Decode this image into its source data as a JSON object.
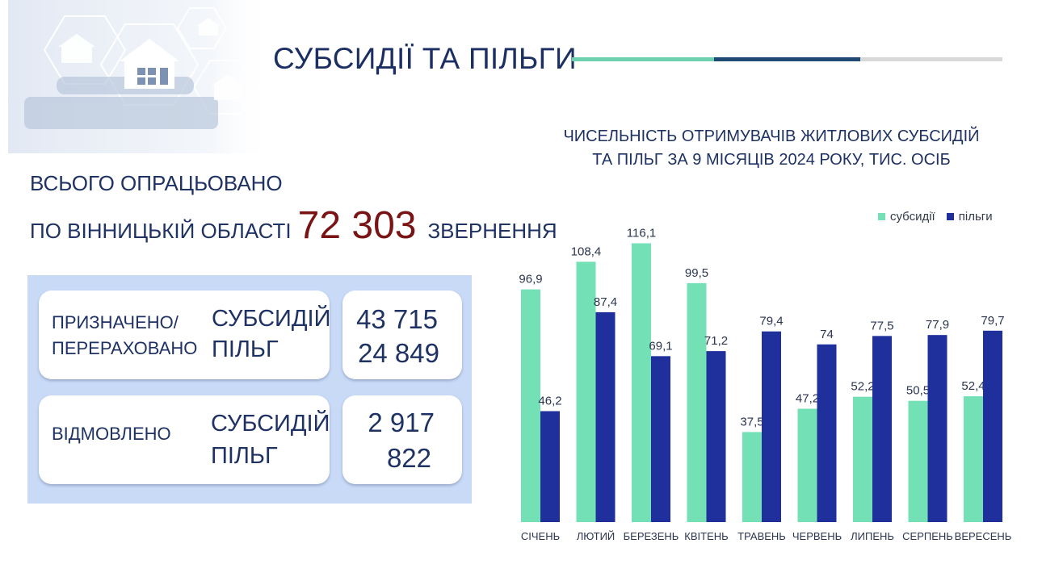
{
  "page": {
    "title": "СУБСИДІЇ ТА ПІЛЬГИ",
    "accent_colors": [
      "#6fd0b0",
      "#1e4a73",
      "#d8d8d8"
    ]
  },
  "summary": {
    "line1": "ВСЬОГО ОПРАЦЬОВАНО",
    "line2_prefix": "ПО ВІННИЦЬКІЙ ОБЛАСТІ",
    "total": "72 303",
    "line2_suffix": "ЗВЕРНЕННЯ"
  },
  "cards": {
    "assigned": {
      "label_line1": "ПРИЗНАЧЕНО/",
      "label_line2": "ПЕРЕРАХОВАНО",
      "type1": "СУБСИДІЙ",
      "type2": "ПІЛЬГ",
      "value1": "43 715",
      "value2": "24 849"
    },
    "refused": {
      "label": "ВІДМОВЛЕНО",
      "type1": "СУБСИДІЙ",
      "type2": "ПІЛЬГ",
      "value1": "2 917",
      "value2": "822"
    }
  },
  "chart_data": {
    "type": "bar",
    "title_line1": "ЧИСЕЛЬНІСТЬ ОТРИМУВАЧІВ ЖИТЛОВИХ СУБСИДІЙ",
    "title_line2": "ТА ПІЛЬГ ЗА 9 МІСЯЦІВ 2024 РОКУ, ТИС. ОСІБ",
    "categories": [
      "СІЧЕНЬ",
      "ЛЮТИЙ",
      "БЕРЕЗЕНЬ",
      "КВІТЕНЬ",
      "ТРАВЕНЬ",
      "ЧЕРВЕНЬ",
      "ЛИПЕНЬ",
      "СЕРПЕНЬ",
      "ВЕРЕСЕНЬ"
    ],
    "series": [
      {
        "name": "субсидії",
        "color": "#74e0b5",
        "values": [
          96.9,
          108.4,
          116.1,
          99.5,
          37.5,
          47.2,
          52.2,
          50.5,
          52.4
        ],
        "labels": [
          "96,9",
          "108,4",
          "116,1",
          "99,5",
          "37,5",
          "47,2",
          "52,2",
          "50,5",
          "52,4"
        ]
      },
      {
        "name": "пільги",
        "color": "#1f2f9c",
        "values": [
          46.2,
          87.4,
          69.1,
          71.2,
          79.4,
          74,
          77.5,
          77.9,
          79.7
        ],
        "labels": [
          "46,2",
          "87,4",
          "69,1",
          "71,2",
          "79,4",
          "74",
          "77,5",
          "77,9",
          "79,7"
        ]
      }
    ],
    "ylim": [
      0,
      125
    ],
    "grid": false,
    "legend_position": "top-right"
  }
}
